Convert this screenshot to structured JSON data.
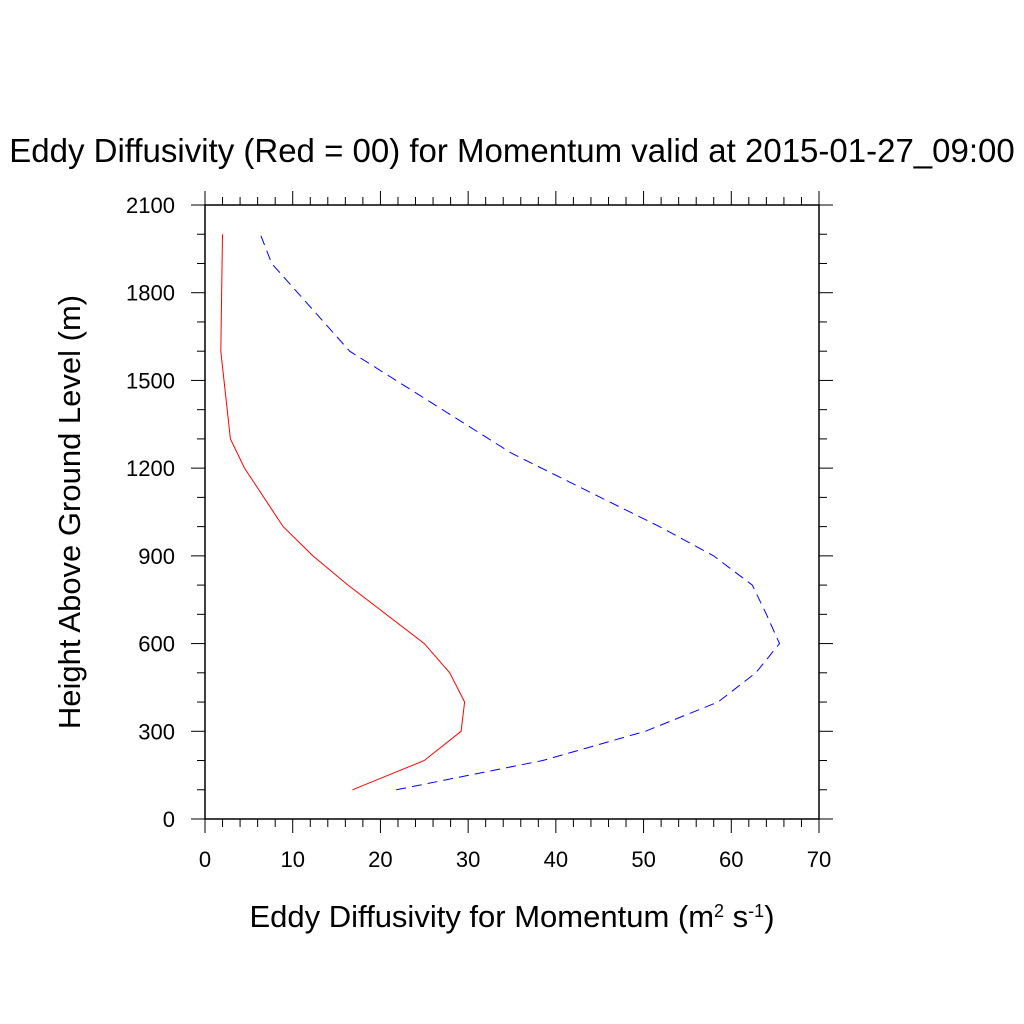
{
  "chart_data": {
    "type": "line",
    "title": "Eddy Diffusivity (Red = 00) for Momentum valid at 2015-01-27_09:00",
    "xlabel": {
      "main": "Eddy Diffusivity for Momentum (m",
      "sup1": "2",
      "mid": " s",
      "sup2": "-1",
      "end": ")"
    },
    "ylabel": "Height Above Ground Level (m)",
    "xlim": [
      0,
      70
    ],
    "ylim": [
      0,
      2100
    ],
    "x_ticks": [
      0,
      10,
      20,
      30,
      40,
      50,
      60,
      70
    ],
    "x_tick_labels": [
      "0",
      "10",
      "20",
      "30",
      "40",
      "50",
      "60",
      "70"
    ],
    "y_ticks": [
      0,
      300,
      600,
      900,
      1200,
      1500,
      1800,
      2100
    ],
    "y_tick_labels": [
      "0",
      "300",
      "600",
      "900",
      "1200",
      "1500",
      "1800",
      "2100"
    ],
    "grid": false,
    "series": [
      {
        "color": "#ff0000",
        "dash": "solid",
        "points": [
          [
            16.8,
            100
          ],
          [
            25.0,
            200
          ],
          [
            29.2,
            300
          ],
          [
            29.6,
            400
          ],
          [
            27.9,
            500
          ],
          [
            25.0,
            600
          ],
          [
            16.3,
            800
          ],
          [
            12.3,
            900
          ],
          [
            8.9,
            1000
          ],
          [
            4.5,
            1200
          ],
          [
            2.9,
            1300
          ],
          [
            1.8,
            1600
          ],
          [
            2.0,
            2000
          ]
        ]
      },
      {
        "color": "#0000ff",
        "dash": "dashed",
        "points": [
          [
            21.8,
            100
          ],
          [
            38.5,
            200
          ],
          [
            50.2,
            300
          ],
          [
            58.5,
            400
          ],
          [
            62.8,
            500
          ],
          [
            65.5,
            600
          ],
          [
            64.0,
            700
          ],
          [
            62.4,
            800
          ],
          [
            58.0,
            900
          ],
          [
            51.8,
            1000
          ],
          [
            35.0,
            1250
          ],
          [
            16.5,
            1600
          ],
          [
            7.6,
            1900
          ],
          [
            6.3,
            2000
          ]
        ]
      }
    ]
  }
}
